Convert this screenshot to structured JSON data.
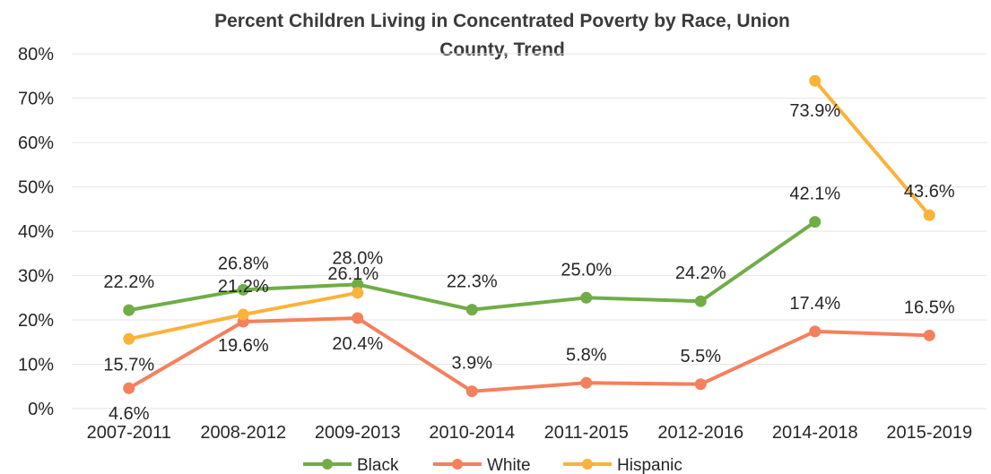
{
  "chart_data": {
    "type": "line",
    "title": "Percent Children Living in Concentrated Poverty by Race, Union County, Trend",
    "title_lines": [
      "Percent Children Living in Concentrated Poverty by Race, Union",
      "County, Trend"
    ],
    "xlabel": "",
    "ylabel": "",
    "categories": [
      "2007-2011",
      "2008-2012",
      "2009-2013",
      "2010-2014",
      "2011-2015",
      "2012-2016",
      "2014-2018",
      "2015-2019"
    ],
    "y_ticks": [
      "0%",
      "10%",
      "20%",
      "30%",
      "40%",
      "50%",
      "60%",
      "70%",
      "80%"
    ],
    "ylim": [
      0,
      80
    ],
    "grid": true,
    "legend_position": "bottom",
    "series": [
      {
        "name": "Black",
        "color": "#70ad47",
        "values": [
          22.2,
          26.8,
          28.0,
          22.3,
          25.0,
          24.2,
          42.1,
          null
        ],
        "labels": [
          "22.2%",
          "26.8%",
          "28.0%",
          "22.3%",
          "25.0%",
          "24.2%",
          "42.1%",
          ""
        ]
      },
      {
        "name": "White",
        "color": "#f4805d",
        "values": [
          4.6,
          19.6,
          20.4,
          3.9,
          5.8,
          5.5,
          17.4,
          16.5
        ],
        "labels": [
          "4.6%",
          "19.6%",
          "20.4%",
          "3.9%",
          "5.8%",
          "5.5%",
          "17.4%",
          "16.5%"
        ]
      },
      {
        "name": "Hispanic",
        "color": "#fbb23a",
        "values": [
          15.7,
          21.2,
          26.1,
          null,
          null,
          null,
          73.9,
          43.6
        ],
        "labels": [
          "15.7%",
          "21.2%",
          "26.1%",
          "",
          "",
          "",
          "73.9%",
          "43.6%"
        ]
      }
    ]
  }
}
